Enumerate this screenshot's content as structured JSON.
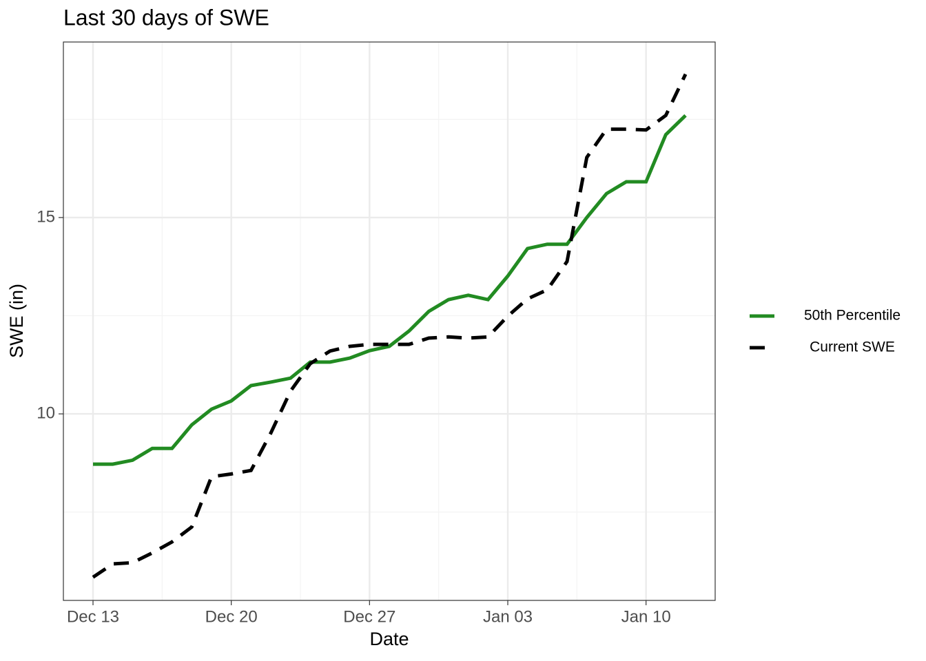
{
  "chart_data": {
    "type": "line",
    "title": "Last 30 days of SWE",
    "x_label": "Date",
    "y_label": "SWE (in)",
    "x": [
      "Dec 13",
      "Dec 14",
      "Dec 15",
      "Dec 16",
      "Dec 17",
      "Dec 18",
      "Dec 19",
      "Dec 20",
      "Dec 21",
      "Dec 22",
      "Dec 23",
      "Dec 24",
      "Dec 25",
      "Dec 26",
      "Dec 27",
      "Dec 28",
      "Dec 29",
      "Dec 30",
      "Dec 31",
      "Jan 01",
      "Jan 02",
      "Jan 03",
      "Jan 04",
      "Jan 05",
      "Jan 06",
      "Jan 07",
      "Jan 08",
      "Jan 09",
      "Jan 10",
      "Jan 11",
      "Jan 12"
    ],
    "xticks": [
      "Dec 13",
      "Dec 20",
      "Dec 27",
      "Jan 03",
      "Jan 10"
    ],
    "series": [
      {
        "name": "50th Percentile",
        "color": "#228b22",
        "dash": false,
        "values": [
          8.72,
          8.72,
          8.82,
          9.12,
          9.12,
          9.72,
          10.12,
          10.33,
          10.72,
          10.81,
          10.91,
          11.32,
          11.32,
          11.42,
          11.61,
          11.72,
          12.11,
          12.61,
          12.91,
          13.02,
          12.91,
          13.51,
          14.21,
          14.32,
          14.32,
          15.0,
          15.61,
          15.91,
          15.91,
          17.11,
          17.6
        ]
      },
      {
        "name": "Current SWE",
        "color": "#000000",
        "dash": true,
        "values": [
          5.84,
          6.18,
          6.21,
          6.46,
          6.74,
          7.12,
          8.4,
          8.47,
          8.56,
          9.51,
          10.58,
          11.28,
          11.6,
          11.72,
          11.77,
          11.77,
          11.77,
          11.93,
          11.96,
          11.93,
          11.96,
          12.49,
          12.93,
          13.16,
          13.88,
          16.53,
          17.25,
          17.25,
          17.23,
          17.6,
          18.65
        ]
      }
    ],
    "ylim": [
      5.25,
      19.47
    ],
    "yticks": [
      10,
      15
    ],
    "y_minor_ticks": [
      7.5,
      12.5,
      17.5
    ],
    "grid": true,
    "legend": "right"
  }
}
